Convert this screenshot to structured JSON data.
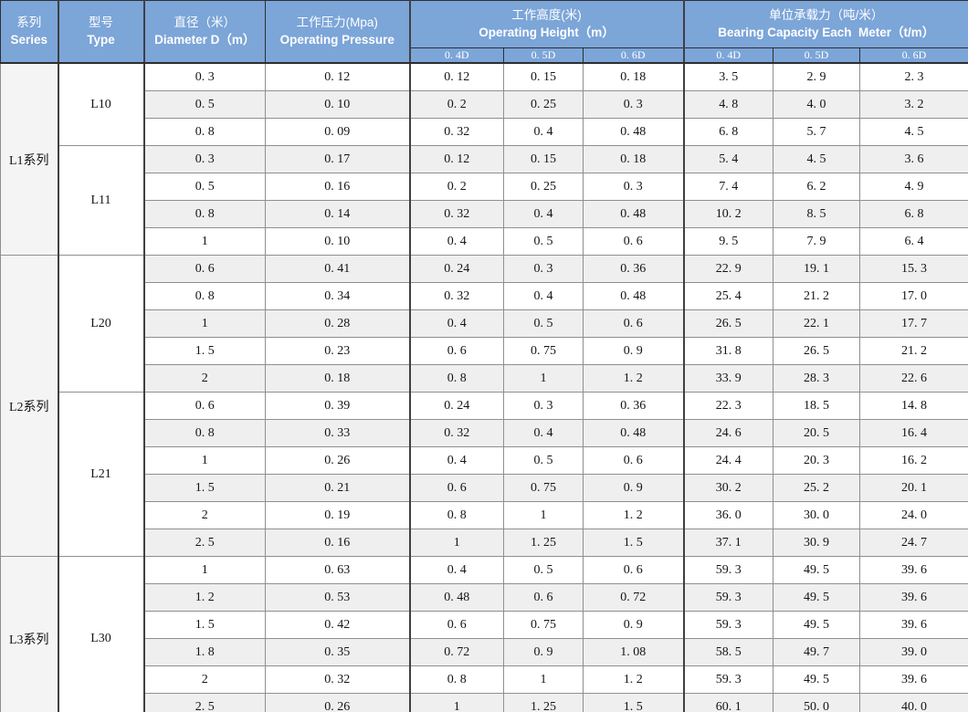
{
  "colors": {
    "header_bg": "#7CA5D8",
    "header_text": "#FFFFFF",
    "row_stripe": "#EFEFEF",
    "row_plain": "#FFFFFF",
    "series_column_bg": "#F4F4F4",
    "grid_line": "#8F8F8F",
    "dark_line": "#2E2E2E",
    "body_text": "#141414"
  },
  "header": {
    "series": {
      "zh": "系列",
      "en": "Series"
    },
    "type": {
      "zh": "型号",
      "en": "Type"
    },
    "diameter": {
      "zh": "直径（米）",
      "en": "Diameter D（m）"
    },
    "pressure": {
      "zh": "工作压力(Mpa)",
      "en": "Operating Pressure"
    },
    "height": {
      "zh": "工作高度(米)",
      "en": "Operating Height（m）"
    },
    "capacity": {
      "zh": "单位承载力（吨/米）",
      "en": "Bearing Capacity Each  Meter（t/m）"
    },
    "subcols": [
      "0. 4D",
      "0. 5D",
      "0. 6D"
    ]
  },
  "table": {
    "groups": [
      {
        "series": "L1系列",
        "types": [
          {
            "type": "L10",
            "rows": [
              [
                "0. 3",
                "0. 12",
                "0. 12",
                "0. 15",
                "0. 18",
                "3. 5",
                "2. 9",
                "2. 3"
              ],
              [
                "0. 5",
                "0. 10",
                "0. 2",
                "0. 25",
                "0. 3",
                "4. 8",
                "4. 0",
                "3. 2"
              ],
              [
                "0. 8",
                "0. 09",
                "0. 32",
                "0. 4",
                "0. 48",
                "6. 8",
                "5. 7",
                "4. 5"
              ]
            ]
          },
          {
            "type": "L11",
            "rows": [
              [
                "0. 3",
                "0. 17",
                "0. 12",
                "0. 15",
                "0. 18",
                "5. 4",
                "4. 5",
                "3. 6"
              ],
              [
                "0. 5",
                "0. 16",
                "0. 2",
                "0. 25",
                "0. 3",
                "7. 4",
                "6. 2",
                "4. 9"
              ],
              [
                "0. 8",
                "0. 14",
                "0. 32",
                "0. 4",
                "0. 48",
                "10. 2",
                "8. 5",
                "6. 8"
              ],
              [
                "1",
                "0. 10",
                "0. 4",
                "0. 5",
                "0. 6",
                "9. 5",
                "7. 9",
                "6. 4"
              ]
            ]
          }
        ]
      },
      {
        "series": "L2系列",
        "types": [
          {
            "type": "L20",
            "rows": [
              [
                "0. 6",
                "0. 41",
                "0. 24",
                "0. 3",
                "0. 36",
                "22. 9",
                "19. 1",
                "15. 3"
              ],
              [
                "0. 8",
                "0. 34",
                "0. 32",
                "0. 4",
                "0. 48",
                "25. 4",
                "21. 2",
                "17. 0"
              ],
              [
                "1",
                "0. 28",
                "0. 4",
                "0. 5",
                "0. 6",
                "26. 5",
                "22. 1",
                "17. 7"
              ],
              [
                "1. 5",
                "0. 23",
                "0. 6",
                "0. 75",
                "0. 9",
                "31. 8",
                "26. 5",
                "21. 2"
              ],
              [
                "2",
                "0. 18",
                "0. 8",
                "1",
                "1. 2",
                "33. 9",
                "28. 3",
                "22. 6"
              ]
            ]
          },
          {
            "type": "L21",
            "rows": [
              [
                "0. 6",
                "0. 39",
                "0. 24",
                "0. 3",
                "0. 36",
                "22. 3",
                "18. 5",
                "14. 8"
              ],
              [
                "0. 8",
                "0. 33",
                "0. 32",
                "0. 4",
                "0. 48",
                "24. 6",
                "20. 5",
                "16. 4"
              ],
              [
                "1",
                "0. 26",
                "0. 4",
                "0. 5",
                "0. 6",
                "24. 4",
                "20. 3",
                "16. 2"
              ],
              [
                "1. 5",
                "0. 21",
                "0. 6",
                "0. 75",
                "0. 9",
                "30. 2",
                "25. 2",
                "20. 1"
              ],
              [
                "2",
                "0. 19",
                "0. 8",
                "1",
                "1. 2",
                "36. 0",
                "30. 0",
                "24. 0"
              ],
              [
                "2. 5",
                "0. 16",
                "1",
                "1. 25",
                "1. 5",
                "37. 1",
                "30. 9",
                "24. 7"
              ]
            ]
          }
        ]
      },
      {
        "series": "L3系列",
        "types": [
          {
            "type": "L30",
            "rows": [
              [
                "1",
                "0. 63",
                "0. 4",
                "0. 5",
                "0. 6",
                "59. 3",
                "49. 5",
                "39. 6"
              ],
              [
                "1. 2",
                "0. 53",
                "0. 48",
                "0. 6",
                "0. 72",
                "59. 3",
                "49. 5",
                "39. 6"
              ],
              [
                "1. 5",
                "0. 42",
                "0. 6",
                "0. 75",
                "0. 9",
                "59. 3",
                "49. 5",
                "39. 6"
              ],
              [
                "1. 8",
                "0. 35",
                "0. 72",
                "0. 9",
                "1. 08",
                "58. 5",
                "49. 7",
                "39. 0"
              ],
              [
                "2",
                "0. 32",
                "0. 8",
                "1",
                "1. 2",
                "59. 3",
                "49. 5",
                "39. 6"
              ],
              [
                "2. 5",
                "0. 26",
                "1",
                "1. 25",
                "1. 5",
                "60. 1",
                "50. 0",
                "40. 0"
              ]
            ]
          }
        ]
      }
    ]
  }
}
